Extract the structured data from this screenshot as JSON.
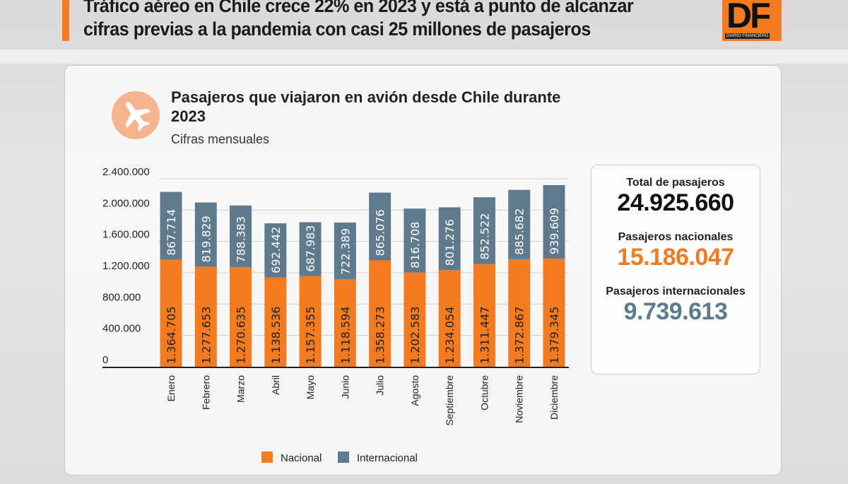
{
  "headline": "Tráfico aéreo en Chile crece 22% en 2023 y está a punto de alcanzar cifras previas a la pandemia con casi 25 millones de pasajeros",
  "logo": {
    "text": "DF",
    "subtext": "DIARIO FINANCIERO"
  },
  "icon": "airplane-icon",
  "colors": {
    "nacional": "#f47b20",
    "internacional": "#5f7a8c",
    "accent": "#f47b20"
  },
  "totals": {
    "total_label": "Total de pasajeros",
    "total_value": "24.925.660",
    "nacional_label": "Pasajeros nacionales",
    "nacional_value": "15.186.047",
    "internacional_label": "Pasajeros internacionales",
    "internacional_value": "9.739.613"
  },
  "chart_data": {
    "type": "bar",
    "stacked": true,
    "title": "Pasajeros que viajaron en avión desde Chile durante 2023",
    "subtitle": "Cifras mensuales",
    "categories": [
      "Enero",
      "Febrero",
      "Marzo",
      "Abril",
      "Mayo",
      "Junio",
      "Julio",
      "Agosto",
      "Septiembre",
      "Octubre",
      "Noviembre",
      "Diciembre"
    ],
    "series": [
      {
        "name": "Nacional",
        "values": [
          1364705,
          1277653,
          1270635,
          1138536,
          1157355,
          1118594,
          1358273,
          1202583,
          1234054,
          1311447,
          1372867,
          1379345
        ],
        "labels": [
          "1.364.705",
          "1.277.653",
          "1.270.635",
          "1.138.536",
          "1.157.355",
          "1.118.594",
          "1.358.273",
          "1.202.583",
          "1.234.054",
          "1.311.447",
          "1.372.867",
          "1.379.345"
        ]
      },
      {
        "name": "Internacional",
        "values": [
          867714,
          819829,
          788383,
          692442,
          687983,
          722389,
          865076,
          816708,
          801276,
          852522,
          885682,
          939609
        ],
        "labels": [
          "867.714",
          "819.829",
          "788.383",
          "692.442",
          "687.983",
          "722.389",
          "865.076",
          "816.708",
          "801.276",
          "852.522",
          "885.682",
          "939.609"
        ]
      }
    ],
    "yticks": [
      0,
      400000,
      800000,
      1200000,
      1600000,
      2000000,
      2400000
    ],
    "ytick_labels": [
      "0",
      "400.000",
      "800.000",
      "1.200.000",
      "1.600.000",
      "2.000.000",
      "2.400.000"
    ],
    "ylim": [
      0,
      2400000
    ],
    "grid": true,
    "legend_position": "bottom"
  }
}
